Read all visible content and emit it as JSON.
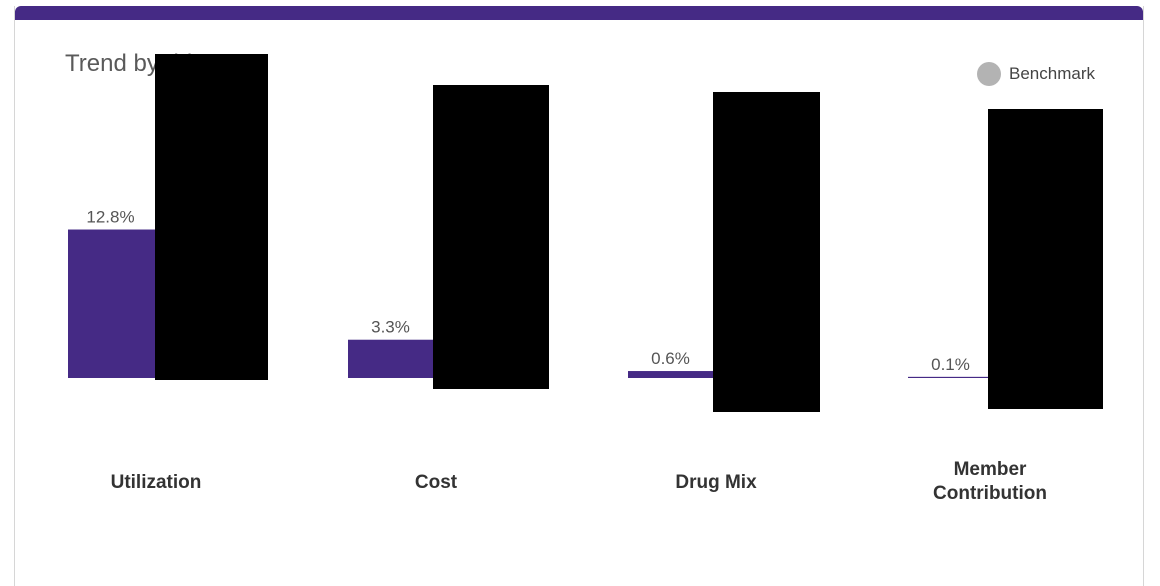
{
  "chart_data": {
    "type": "bar",
    "title": "Trend by driver",
    "categories": [
      "Utilization",
      "Cost",
      "Drug Mix",
      "Member Contribution"
    ],
    "category_lines": [
      [
        "Utilization"
      ],
      [
        "Cost"
      ],
      [
        "Drug Mix"
      ],
      [
        "Member",
        "Contribution"
      ]
    ],
    "series": [
      {
        "values": [
          12.8,
          3.3,
          0.6,
          0.1
        ],
        "color": "#452a85"
      },
      {
        "name": "Benchmark",
        "values": [
          null,
          null,
          null,
          null
        ],
        "color": "#b3b3b3",
        "redacted": true
      }
    ],
    "data_labels": [
      "12.8%",
      "3.3%",
      "0.6%",
      "0.1%"
    ],
    "ylim": [
      0,
      13.5
    ],
    "grid": false,
    "legend": "top-right"
  },
  "colors": {
    "accent": "#452a85",
    "benchmark": "#b3b3b3",
    "redaction": "#000000"
  }
}
